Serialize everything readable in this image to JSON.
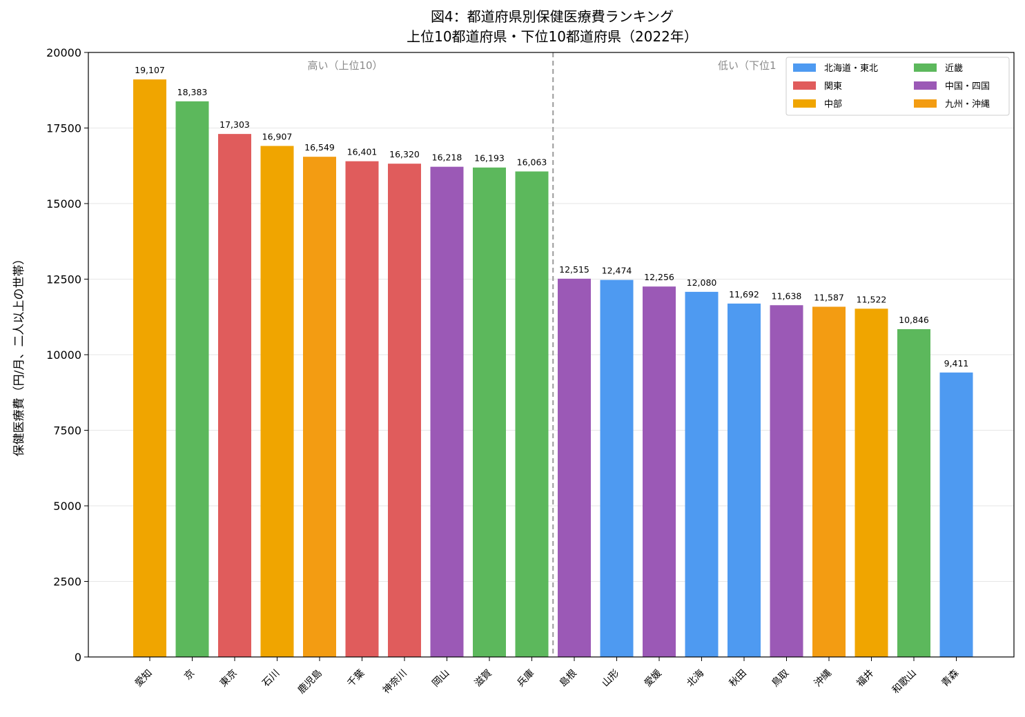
{
  "chart_data": {
    "type": "bar",
    "title": "図4：都道府県別保健医療費ランキング",
    "subtitle": "上位10都道府県・下位10都道府県（2022年）",
    "xlabel": "",
    "ylabel": "保健医療費（円/月、二人以上の世帯）",
    "ylim": [
      0,
      20000
    ],
    "yticks": [
      0,
      2500,
      5000,
      7500,
      10000,
      12500,
      15000,
      17500,
      20000
    ],
    "grid": "horizontal",
    "legend_position": "top-right",
    "section_labels": {
      "top": "高い（上位10）",
      "bottom": "低い（下位1"
    },
    "regions": [
      {
        "name": "北海道・東北",
        "color": "#4e9af1"
      },
      {
        "name": "関東",
        "color": "#e05c5c"
      },
      {
        "name": "中部",
        "color": "#f0a500"
      },
      {
        "name": "近畿",
        "color": "#5cb85c"
      },
      {
        "name": "中国・四国",
        "color": "#9b59b6"
      },
      {
        "name": "九州・沖縄",
        "color": "#f39c12"
      }
    ],
    "categories": [
      "愛知",
      "京",
      "東京",
      "石川",
      "鹿児島",
      "千葉",
      "神奈川",
      "岡山",
      "滋賀",
      "兵庫",
      "島根",
      "山形",
      "愛媛",
      "北海",
      "秋田",
      "鳥取",
      "沖縄",
      "福井",
      "和歌山",
      "青森"
    ],
    "values": [
      19107,
      18383,
      17303,
      16907,
      16549,
      16401,
      16320,
      16218,
      16193,
      16063,
      12515,
      12474,
      12256,
      12080,
      11692,
      11638,
      11587,
      11522,
      10846,
      9411
    ],
    "value_labels": [
      "19,107",
      "18,383",
      "17,303",
      "16,907",
      "16,549",
      "16,401",
      "16,320",
      "16,218",
      "16,193",
      "16,063",
      "12,515",
      "12,474",
      "12,256",
      "12,080",
      "11,692",
      "11,638",
      "11,587",
      "11,522",
      "10,846",
      "9,411"
    ],
    "bar_regions": [
      "中部",
      "近畿",
      "関東",
      "中部",
      "九州・沖縄",
      "関東",
      "関東",
      "中国・四国",
      "近畿",
      "近畿",
      "中国・四国",
      "北海道・東北",
      "中国・四国",
      "北海道・東北",
      "北海道・東北",
      "中国・四国",
      "九州・沖縄",
      "中部",
      "近畿",
      "北海道・東北"
    ]
  }
}
